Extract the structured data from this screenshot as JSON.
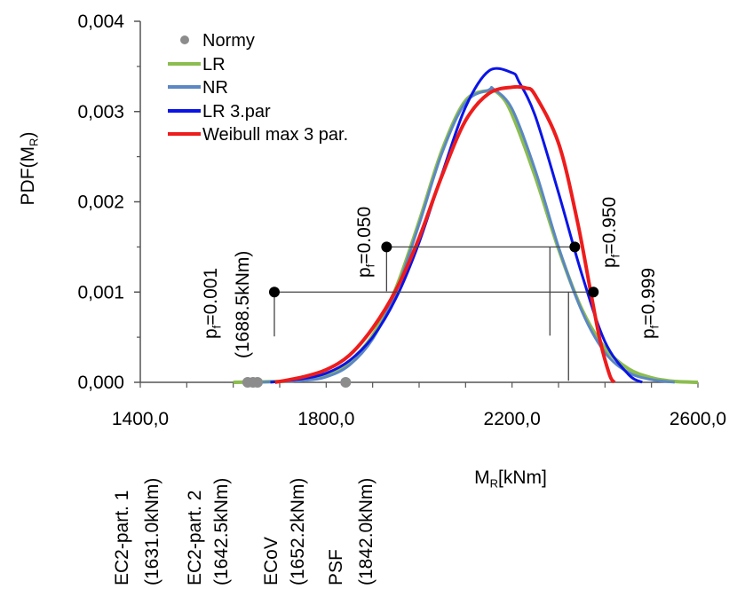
{
  "chart_data": {
    "type": "line",
    "title": "",
    "xlabel": "M_R[kNm]",
    "xlabel_parts": {
      "main": "M",
      "sub": "R",
      "rest": "[kNm]"
    },
    "ylabel_parts": {
      "main": "PDF(M",
      "sub": "R",
      "rest": ")"
    },
    "xlim": [
      1400,
      2600
    ],
    "ylim": [
      0,
      0.004
    ],
    "x_ticks": [
      1400,
      1800,
      2200,
      2600
    ],
    "x_tick_labels": [
      "1400,0",
      "1800,0",
      "2200,0",
      "2600,0"
    ],
    "y_ticks": [
      0,
      0.001,
      0.002,
      0.003,
      0.004
    ],
    "y_tick_labels": [
      "0,000",
      "0,001",
      "0,002",
      "0,003",
      "0,004"
    ],
    "grid": false,
    "legend_position": "top-left",
    "legend": [
      {
        "label": "Normy",
        "kind": "marker",
        "color": "#8c8c8c"
      },
      {
        "label": "LR",
        "kind": "line",
        "color": "#8cbd4f"
      },
      {
        "label": "NR",
        "kind": "line",
        "color": "#5b87c4"
      },
      {
        "label": "LR 3.par",
        "kind": "line",
        "color": "#0a14e6"
      },
      {
        "label": "Weibull max 3 par.",
        "kind": "line",
        "color": "#ee1c1c"
      }
    ],
    "series": [
      {
        "name": "LR",
        "color": "#8cbd4f",
        "width": 4,
        "x": [
          1600,
          1700,
          1750,
          1800,
          1850,
          1900,
          1950,
          2000,
          2050,
          2100,
          2150,
          2175,
          2200,
          2250,
          2300,
          2350,
          2400,
          2450,
          2500,
          2550,
          2600
        ],
        "y": [
          0,
          1e-05,
          3e-05,
          9e-05,
          0.00023,
          0.00052,
          0.00104,
          0.00178,
          0.00258,
          0.00312,
          0.00323,
          0.00318,
          0.00297,
          0.00228,
          0.00148,
          0.00081,
          0.00038,
          0.00015,
          5e-05,
          1e-05,
          0
        ]
      },
      {
        "name": "NR",
        "color": "#5b87c4",
        "width": 3,
        "x": [
          1650,
          1750,
          1800,
          1850,
          1900,
          1950,
          2000,
          2050,
          2100,
          2150,
          2160,
          2200,
          2250,
          2300,
          2350,
          2400,
          2450,
          2500,
          2550
        ],
        "y": [
          0,
          2e-05,
          6e-05,
          0.00019,
          0.00048,
          0.001,
          0.00175,
          0.00255,
          0.0031,
          0.00324,
          0.00325,
          0.00303,
          0.00235,
          0.0015,
          0.00079,
          0.00033,
          0.00011,
          3e-05,
          0
        ]
      },
      {
        "name": "LR 3.par",
        "color": "#0a14e6",
        "width": 3,
        "x": [
          1680,
          1750,
          1800,
          1850,
          1900,
          1950,
          2000,
          2050,
          2100,
          2150,
          2200,
          2215,
          2250,
          2300,
          2350,
          2400,
          2450,
          2480
        ],
        "y": [
          0,
          4e-05,
          0.0001,
          0.00024,
          0.0005,
          0.00093,
          0.00155,
          0.00232,
          0.00305,
          0.00345,
          0.00343,
          0.00333,
          0.00295,
          0.0021,
          0.0012,
          0.00045,
          9e-05,
          0
        ]
      },
      {
        "name": "Weibull max 3 par.",
        "color": "#ee1c1c",
        "width": 4,
        "x": [
          1690,
          1750,
          1800,
          1850,
          1900,
          1950,
          2000,
          2050,
          2100,
          2150,
          2200,
          2230,
          2250,
          2300,
          2340,
          2370,
          2390,
          2410,
          2420
        ],
        "y": [
          0,
          6e-05,
          0.00014,
          0.0003,
          0.0006,
          0.00102,
          0.0016,
          0.0023,
          0.0029,
          0.0032,
          0.00327,
          0.00326,
          0.00318,
          0.00265,
          0.0018,
          0.00098,
          0.00045,
          8e-05,
          0
        ]
      }
    ],
    "normy_points": [
      {
        "name": "EC2-part. 1",
        "x": 1631.0,
        "label_name": "EC2-part. 1",
        "label_value": "(1631.0kNm)"
      },
      {
        "name": "EC2-part. 2",
        "x": 1642.5,
        "label_name": "EC2-part. 2",
        "label_value": "(1642.5kNm)"
      },
      {
        "name": "ECoV",
        "x": 1652.2,
        "label_name": "ECoV",
        "label_value": "(1652.2kNm)"
      },
      {
        "name": "PSF",
        "x": 1842.0,
        "label_name": "PSF",
        "label_value": "(1842.0kNm)"
      }
    ],
    "intervals": [
      {
        "x_left": 1688.5,
        "x_right": 2375,
        "y": 0.001,
        "left_label": "p_f=0.001",
        "left_value": "(1688.5kNm)",
        "right_label": "p_f=0.999"
      },
      {
        "x_left": 1930,
        "x_right": 2335,
        "y": 0.0015,
        "left_label": "p_f=0.050",
        "right_label": "p_f=0.950"
      }
    ]
  }
}
